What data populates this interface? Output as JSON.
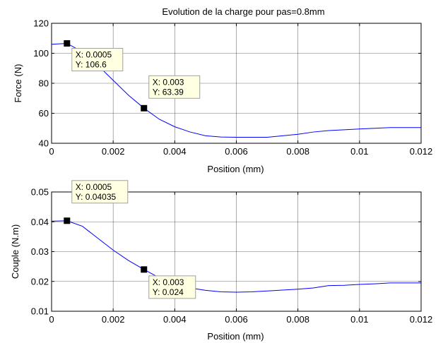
{
  "chart_data": [
    {
      "type": "line",
      "title": "Evolution de la charge pour pas=0.8mm",
      "xlabel": "Position (mm)",
      "ylabel": "Force (N)",
      "xlim": [
        0,
        0.012
      ],
      "ylim": [
        40,
        120
      ],
      "xticks": [
        0,
        0.002,
        0.004,
        0.006,
        0.008,
        0.01,
        0.012
      ],
      "xtick_labels": [
        "0",
        "0.002",
        "0.004",
        "0.006",
        "0.008",
        "0.01",
        "0.012"
      ],
      "yticks": [
        40,
        60,
        80,
        100,
        120
      ],
      "ytick_labels": [
        "40",
        "60",
        "80",
        "100",
        "120"
      ],
      "grid": true,
      "line_color": "#0000ff",
      "series": [
        {
          "x": [
            0,
            0.0005,
            0.001,
            0.0015,
            0.002,
            0.0025,
            0.003,
            0.0035,
            0.004,
            0.0045,
            0.005,
            0.0055,
            0.006,
            0.0065,
            0.007,
            0.0075,
            0.008,
            0.0085,
            0.009,
            0.0095,
            0.01,
            0.0105,
            0.011,
            0.0115,
            0.012
          ],
          "y": [
            106,
            106.6,
            101,
            92,
            82,
            72,
            63.39,
            56,
            51,
            47.5,
            45,
            44.2,
            44,
            44,
            44,
            45,
            46,
            47.5,
            48.5,
            49,
            49.5,
            50,
            50.5,
            50.5,
            50.5
          ]
        }
      ],
      "datatips": [
        {
          "x": 0.0005,
          "y": 106.6,
          "label_x": "X: 0.0005",
          "label_y": "Y: 106.6"
        },
        {
          "x": 0.003,
          "y": 63.39,
          "label_x": "X: 0.003",
          "label_y": "Y: 63.39"
        }
      ]
    },
    {
      "type": "line",
      "title": "",
      "xlabel": "Position (mm)",
      "ylabel": "Couple (N.m)",
      "xlim": [
        0,
        0.012
      ],
      "ylim": [
        0.01,
        0.05
      ],
      "xticks": [
        0,
        0.002,
        0.004,
        0.006,
        0.008,
        0.01,
        0.012
      ],
      "xtick_labels": [
        "0",
        "0.002",
        "0.004",
        "0.006",
        "0.008",
        "0.01",
        "0.012"
      ],
      "yticks": [
        0.01,
        0.02,
        0.03,
        0.04,
        0.05
      ],
      "ytick_labels": [
        "0.01",
        "0.02",
        "0.03",
        "0.04",
        "0.05"
      ],
      "grid": true,
      "line_color": "#0000ff",
      "series": [
        {
          "x": [
            0,
            0.0005,
            0.001,
            0.0015,
            0.002,
            0.0025,
            0.003,
            0.0035,
            0.004,
            0.0045,
            0.005,
            0.0055,
            0.006,
            0.0065,
            0.007,
            0.0075,
            0.008,
            0.0085,
            0.009,
            0.0095,
            0.01,
            0.0105,
            0.011,
            0.0115,
            0.012
          ],
          "y": [
            0.0402,
            0.04035,
            0.0385,
            0.0345,
            0.0305,
            0.027,
            0.024,
            0.0212,
            0.019,
            0.0178,
            0.017,
            0.0165,
            0.0164,
            0.0165,
            0.0168,
            0.0171,
            0.0174,
            0.0178,
            0.0186,
            0.0187,
            0.019,
            0.0192,
            0.0195,
            0.0195,
            0.0195
          ]
        }
      ],
      "datatips": [
        {
          "x": 0.0005,
          "y": 0.04035,
          "label_x": "X: 0.0005",
          "label_y": "Y: 0.04035"
        },
        {
          "x": 0.003,
          "y": 0.024,
          "label_x": "X: 0.003",
          "label_y": "Y: 0.024"
        }
      ]
    }
  ]
}
